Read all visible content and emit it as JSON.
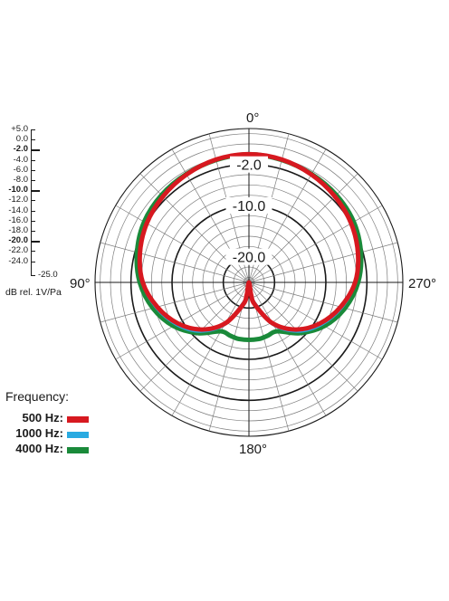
{
  "chart_data": {
    "type": "polar",
    "angle_labels": {
      "top": "0°",
      "left": "90°",
      "right": "270°",
      "bottom": "180°"
    },
    "ring_labels": [
      "-2.0",
      "-10.0",
      "-20.0"
    ],
    "r_range_db": [
      -25,
      5
    ],
    "scale_ticks": [
      {
        "label": "+5.0",
        "bold": false
      },
      {
        "label": "0.0",
        "bold": false
      },
      {
        "label": "-2.0",
        "bold": true
      },
      {
        "label": "-4.0",
        "bold": false
      },
      {
        "label": "-6.0",
        "bold": false
      },
      {
        "label": "-8.0",
        "bold": false
      },
      {
        "label": "-10.0",
        "bold": true
      },
      {
        "label": "-12.0",
        "bold": false
      },
      {
        "label": "-14.0",
        "bold": false
      },
      {
        "label": "-16.0",
        "bold": false
      },
      {
        "label": "-18.0",
        "bold": false
      },
      {
        "label": "-20.0",
        "bold": true
      },
      {
        "label": "-22.0",
        "bold": false
      },
      {
        "label": "-24.0",
        "bold": false
      }
    ],
    "scale_min_label": "-25.0",
    "unit_label": "dB rel. 1V/Pa",
    "legend_title": "Frequency:",
    "series": [
      {
        "name": "500 Hz:",
        "color": "#d71920",
        "angles_deg": [
          0,
          15,
          30,
          45,
          60,
          75,
          90,
          105,
          120,
          135,
          150,
          165,
          170,
          180,
          190,
          195,
          210,
          225,
          240,
          255,
          270,
          285,
          300,
          315,
          330,
          345
        ],
        "values_db": [
          0,
          -0.2,
          -0.7,
          -1.3,
          -2.0,
          -3.0,
          -4.3,
          -6.5,
          -9.0,
          -12.0,
          -15.8,
          -20.5,
          -22.5,
          -25,
          -22.5,
          -20.5,
          -15.8,
          -12.0,
          -9.0,
          -6.5,
          -4.3,
          -3.0,
          -2.0,
          -1.3,
          -0.7,
          -0.2
        ]
      },
      {
        "name": "1000 Hz:",
        "color": "#29aae1",
        "angles_deg": [
          0,
          15,
          30,
          45,
          60,
          75,
          90,
          105,
          120,
          135,
          150,
          165,
          170,
          180,
          190,
          195,
          210,
          225,
          240,
          255,
          270,
          285,
          300,
          315,
          330,
          345
        ],
        "values_db": [
          0,
          -0.2,
          -0.7,
          -1.3,
          -2.0,
          -3.0,
          -4.3,
          -6.3,
          -8.7,
          -11.6,
          -15.6,
          -20.8,
          -23.0,
          -24.8,
          -23.0,
          -20.8,
          -15.6,
          -11.6,
          -8.7,
          -6.3,
          -4.3,
          -3.0,
          -2.0,
          -1.3,
          -0.7,
          -0.2
        ]
      },
      {
        "name": "4000 Hz:",
        "color": "#1a8a3a",
        "angles_deg": [
          0,
          15,
          30,
          45,
          60,
          75,
          90,
          105,
          120,
          135,
          150,
          160,
          165,
          170,
          180,
          190,
          195,
          200,
          210,
          225,
          240,
          255,
          270,
          285,
          300,
          315,
          330,
          345
        ],
        "values_db": [
          0,
          -0.3,
          -0.6,
          -0.9,
          -1.4,
          -2.4,
          -3.7,
          -5.6,
          -8.0,
          -11.0,
          -14.0,
          -14.0,
          -13.9,
          -13.8,
          -13.8,
          -13.8,
          -13.9,
          -14.0,
          -14.0,
          -11.0,
          -8.0,
          -5.6,
          -3.7,
          -2.4,
          -1.4,
          -0.9,
          -0.6,
          -0.3
        ]
      }
    ]
  }
}
